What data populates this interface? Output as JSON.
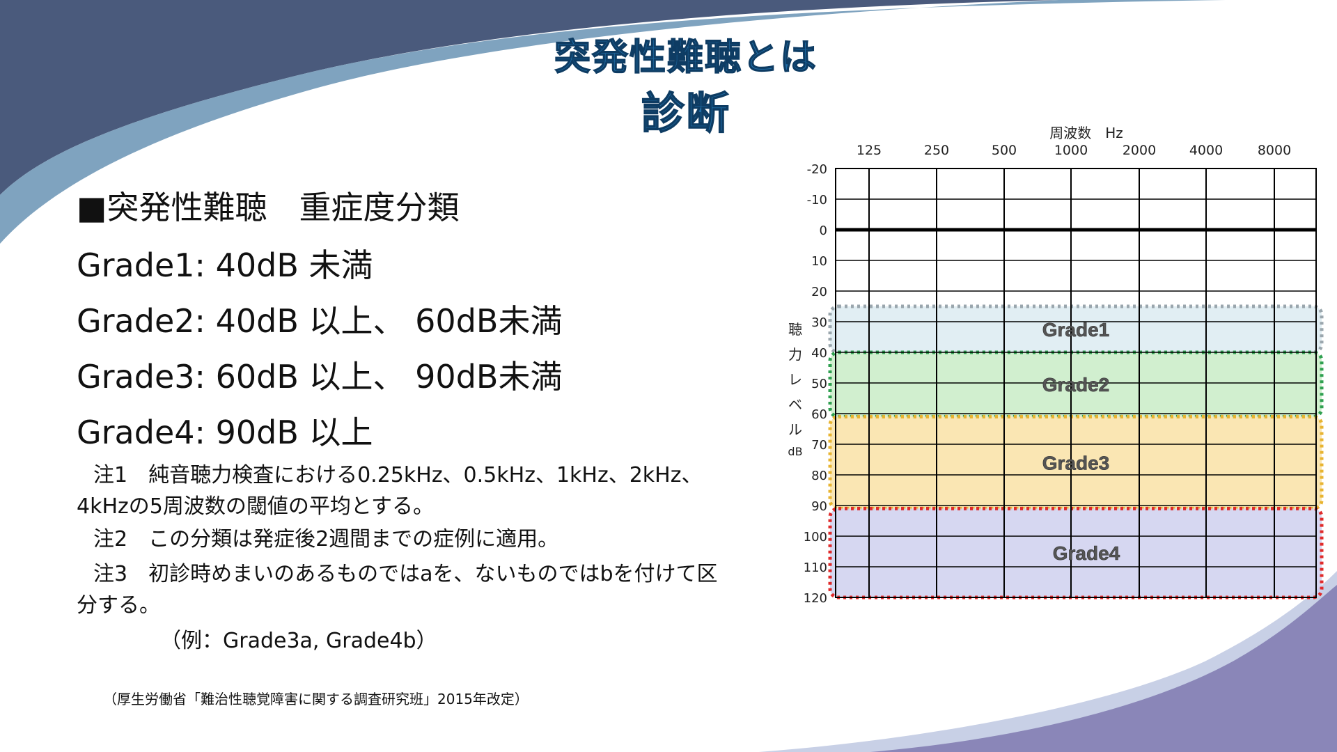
{
  "slide": {
    "title": "突発性難聴とは",
    "subtitle": "診断",
    "heading": "■突発性難聴　重症度分類",
    "grades": [
      "Grade1: 40dB 未満",
      "Grade2: 40dB 以上、 60dB未満",
      "Grade3: 60dB 以上、 90dB未満",
      "Grade4: 90dB 以上"
    ],
    "notes": {
      "note1": "注1　純音聴力検査における0.25kHz、0.5kHz、1kHz、2kHz、4kHzの5周波数の閾値の平均とする。",
      "note2": "注2　この分類は発症後2週間までの症例に適用。",
      "note3": "注3　初診時めまいのあるものではaを、ないものではbを付けて区分する。",
      "example": "（例：Grade3a, Grade4b）"
    },
    "source": "（厚生労働省「難治性聴覚障害に関する調査研究班」2015年改定）",
    "colors": {
      "decor_dark": "#4a5a7c",
      "decor_light": "#7fa3bf",
      "decor_purple": "#8a86b8",
      "title_fill": "#1f6ea8"
    }
  },
  "chart_data": {
    "type": "table",
    "title": "",
    "x_title": "周波数　Hz",
    "y_title": "聴力レベル dB",
    "x_ticks": [
      "125",
      "250",
      "500",
      "1000",
      "2000",
      "4000",
      "8000"
    ],
    "y_ticks": [
      "-20",
      "-10",
      "0",
      "10",
      "20",
      "30",
      "40",
      "50",
      "60",
      "70",
      "80",
      "90",
      "100",
      "110",
      "120"
    ],
    "y_values": [
      -20,
      -10,
      0,
      10,
      20,
      30,
      40,
      50,
      60,
      70,
      80,
      90,
      100,
      110,
      120
    ],
    "ylim": [
      -20,
      120
    ],
    "bands": [
      {
        "label": "Grade1",
        "from": 25,
        "to": 40,
        "fill": "#dcebf1",
        "border": "#9aa6ad"
      },
      {
        "label": "Grade2",
        "from": 40,
        "to": 61,
        "fill": "#c9ecc7",
        "border": "#2fa050"
      },
      {
        "label": "Grade3",
        "from": 61,
        "to": 91,
        "fill": "#f9e2a6",
        "border": "#e8b430"
      },
      {
        "label": "Grade4",
        "from": 91,
        "to": 120,
        "fill": "#cfd0ee",
        "border": "#e02a2a"
      }
    ]
  }
}
